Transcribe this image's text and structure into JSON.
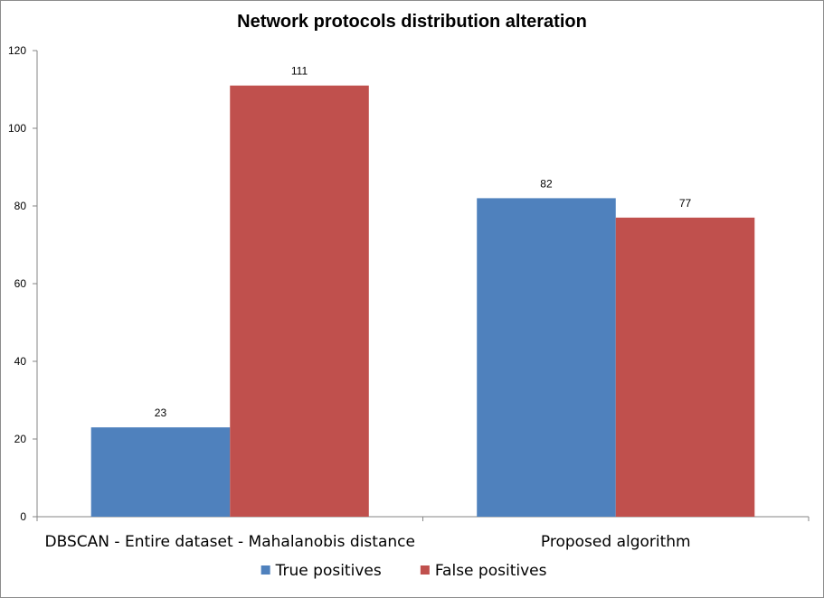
{
  "chart_data": {
    "type": "bar",
    "title": "Network protocols distribution alteration",
    "categories": [
      "DBSCAN - Entire dataset - Mahalanobis distance",
      "Proposed algorithm"
    ],
    "series": [
      {
        "name": "True positives",
        "values": [
          23,
          82
        ],
        "color": "#4F81BD"
      },
      {
        "name": "False positives",
        "values": [
          111,
          77
        ],
        "color": "#C0504D"
      }
    ],
    "y_ticks": [
      0,
      20,
      40,
      60,
      80,
      100,
      120
    ],
    "ylim": [
      0,
      120
    ],
    "xlabel": "",
    "ylabel": "",
    "grid": false,
    "legend_position": "bottom"
  }
}
